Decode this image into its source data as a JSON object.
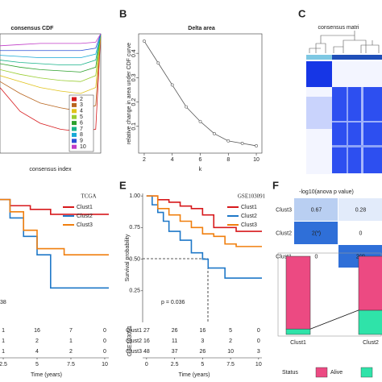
{
  "panel_labels": [
    "B",
    "C",
    "E",
    "F"
  ],
  "chart_data": [
    {
      "type": "line",
      "title": "consensus CDF",
      "xlabel": "consensus index",
      "x": [
        0,
        0.2,
        0.4,
        0.6,
        0.8,
        0.95,
        1
      ],
      "xlim": [
        0,
        1
      ],
      "ylim": [
        0,
        1
      ],
      "series": [
        {
          "name": "2",
          "color": "#d7191c",
          "values": [
            0.55,
            0.35,
            0.25,
            0.2,
            0.18,
            0.2,
            1
          ]
        },
        {
          "name": "3",
          "color": "#b8651e",
          "values": [
            0.6,
            0.5,
            0.42,
            0.38,
            0.35,
            0.4,
            1
          ]
        },
        {
          "name": "4",
          "color": "#e0c21a",
          "values": [
            0.65,
            0.6,
            0.55,
            0.52,
            0.5,
            0.55,
            1
          ]
        },
        {
          "name": "5",
          "color": "#9acd32",
          "values": [
            0.7,
            0.66,
            0.63,
            0.61,
            0.6,
            0.65,
            1
          ]
        },
        {
          "name": "6",
          "color": "#2ca02c",
          "values": [
            0.75,
            0.72,
            0.7,
            0.69,
            0.68,
            0.72,
            1
          ]
        },
        {
          "name": "7",
          "color": "#19b38a",
          "values": [
            0.78,
            0.76,
            0.75,
            0.74,
            0.74,
            0.78,
            1
          ]
        },
        {
          "name": "8",
          "color": "#17a9d6",
          "values": [
            0.82,
            0.81,
            0.8,
            0.8,
            0.8,
            0.83,
            1
          ]
        },
        {
          "name": "9",
          "color": "#2a4fd6",
          "values": [
            0.86,
            0.86,
            0.86,
            0.86,
            0.86,
            0.88,
            1
          ]
        },
        {
          "name": "10",
          "color": "#c03cc8",
          "values": [
            0.9,
            0.91,
            0.92,
            0.92,
            0.92,
            0.93,
            1
          ]
        }
      ]
    },
    {
      "type": "line",
      "title": "Delta area",
      "ylabel": "relative change in area under CDF curve",
      "xlabel": "k",
      "x": [
        2,
        3,
        4,
        5,
        6,
        7,
        8,
        9,
        10
      ],
      "values": [
        0.45,
        0.36,
        0.27,
        0.18,
        0.12,
        0.07,
        0.04,
        0.03,
        0.02
      ],
      "color": "#555555",
      "markers": true,
      "xlim": [
        1.6,
        10.4
      ],
      "ylim": [
        -0.01,
        0.48
      ],
      "xticks": [
        2,
        4,
        6,
        8,
        10
      ],
      "yticks": [
        0.1,
        0.2,
        0.3,
        0.4
      ]
    },
    {
      "type": "heatmap",
      "title": "consensus matri"
    },
    {
      "type": "km",
      "annotation": "TCGA",
      "p_label": "38",
      "xlabel": "Time (years)",
      "xlim": [
        2.26,
        10.3
      ],
      "ylim": [
        0,
        1.05
      ],
      "xticks": [
        2.5,
        5,
        7.5,
        10
      ],
      "series": [
        {
          "name": "Clust1",
          "color": "#d7191c",
          "x": [
            0,
            3,
            4.5,
            6,
            8,
            10.5
          ],
          "values": [
            1,
            0.95,
            0.92,
            0.88,
            0.88,
            0.88
          ]
        },
        {
          "name": "Clust2",
          "color": "#1f78c8",
          "x": [
            0,
            3,
            4,
            5,
            6,
            10.5
          ],
          "values": [
            1,
            0.85,
            0.7,
            0.55,
            0.28,
            0.28
          ]
        },
        {
          "name": "Clust3",
          "color": "#f07f0e",
          "x": [
            0,
            3,
            4,
            5,
            7,
            10.5
          ],
          "values": [
            1,
            0.9,
            0.75,
            0.6,
            0.55,
            0.55
          ]
        }
      ],
      "risk_table": {
        "rows": [
          [
            1,
            16,
            7,
            0
          ],
          [
            1,
            2,
            1,
            0
          ],
          [
            1,
            4,
            2,
            0
          ]
        ]
      }
    },
    {
      "type": "km",
      "annotation": "GSE103091",
      "p_label": "p = 0.036",
      "ylabel": "Survival probability",
      "xlabel": "Time (years)",
      "xlim": [
        -0.35,
        10.3
      ],
      "ylim": [
        0,
        1.02
      ],
      "xticks": [
        0,
        2.5,
        5,
        7.5,
        10
      ],
      "yticks": [
        {
          "value": 0.25,
          "label": "0.25"
        },
        {
          "value": 0.5,
          "label": "0.50"
        },
        {
          "value": 0.75,
          "label": "0.75"
        },
        {
          "value": 1,
          "label": "1.00"
        }
      ],
      "series": [
        {
          "name": "Clust1",
          "color": "#d7191c",
          "x": [
            0,
            1,
            2,
            3,
            4,
            5,
            6,
            8,
            10.3
          ],
          "values": [
            1,
            0.97,
            0.95,
            0.92,
            0.9,
            0.85,
            0.75,
            0.72,
            0.72
          ]
        },
        {
          "name": "Clust2",
          "color": "#1f78c8",
          "x": [
            0,
            0.5,
            1,
            1.5,
            2,
            3,
            4,
            5,
            5.5,
            7,
            10.3
          ],
          "values": [
            1,
            0.93,
            0.87,
            0.8,
            0.72,
            0.65,
            0.55,
            0.5,
            0.43,
            0.35,
            0.35
          ]
        },
        {
          "name": "Clust3",
          "color": "#f07f0e",
          "x": [
            0,
            1,
            2,
            3,
            4,
            5,
            6,
            7,
            8,
            10.3
          ],
          "values": [
            1,
            0.9,
            0.85,
            0.8,
            0.75,
            0.7,
            0.68,
            0.62,
            0.6,
            0.6
          ]
        }
      ],
      "risk_table": {
        "title": "GSE103091",
        "row_labels": [
          "Clust1",
          "Clust2",
          "Clust3"
        ],
        "rows": [
          [
            27,
            26,
            16,
            5,
            0
          ],
          [
            16,
            11,
            3,
            2,
            0
          ],
          [
            48,
            37,
            26,
            10,
            3
          ]
        ]
      }
    },
    {
      "type": "heatmap_table",
      "title": "-log10(anova p value)",
      "rows": [
        "Clust3",
        "Clust2",
        "Clust1"
      ],
      "values": [
        [
          0.67,
          0.28
        ],
        [
          2,
          0
        ],
        [
          0,
          2
        ]
      ],
      "value_labels": [
        [
          "0.67",
          "0.28"
        ],
        [
          "2(*)",
          "0"
        ],
        [
          "0",
          "2(*)"
        ]
      ],
      "colorscale": [
        "#ffffff",
        "#2f6fd8"
      ]
    },
    {
      "type": "stacked_bar",
      "categories": [
        "Clust1",
        "Clust2"
      ],
      "ylim": [
        0,
        1
      ],
      "legend_title": "Status",
      "series": [
        {
          "color": "#2fe3a9",
          "values": [
            0.07,
            0.31
          ]
        },
        {
          "name": "Alive",
          "color": "#ec4a82",
          "values": [
            0.93,
            0.69
          ]
        }
      ]
    }
  ]
}
